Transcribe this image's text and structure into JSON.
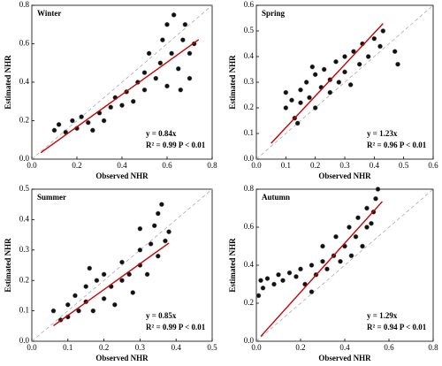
{
  "chart_data": [
    {
      "type": "scatter",
      "title": "Winter",
      "x_label": "Observed NHR",
      "y_label": "Estimated NHR",
      "color": "#111111",
      "fit_color": "#cc0000",
      "x": [
        0.1,
        0.12,
        0.15,
        0.18,
        0.2,
        0.22,
        0.25,
        0.27,
        0.3,
        0.32,
        0.35,
        0.37,
        0.4,
        0.42,
        0.45,
        0.47,
        0.5,
        0.5,
        0.52,
        0.55,
        0.57,
        0.58,
        0.6,
        0.6,
        0.62,
        0.63,
        0.65,
        0.67,
        0.68,
        0.7,
        0.72,
        0.7,
        0.66
      ],
      "y": [
        0.15,
        0.18,
        0.14,
        0.2,
        0.16,
        0.22,
        0.19,
        0.15,
        0.24,
        0.2,
        0.27,
        0.32,
        0.28,
        0.35,
        0.3,
        0.4,
        0.36,
        0.45,
        0.55,
        0.42,
        0.5,
        0.62,
        0.38,
        0.7,
        0.55,
        0.75,
        0.47,
        0.62,
        0.7,
        0.55,
        0.6,
        0.42,
        0.36
      ],
      "xlim": [
        0,
        0.8
      ],
      "ylim": [
        0,
        0.8
      ],
      "xticks": [
        {
          "value": 0,
          "label": "0.0"
        },
        0.2,
        0.4,
        0.6,
        0.8
      ],
      "yticks": [
        {
          "value": 0,
          "label": "0.0"
        },
        0.2,
        0.4,
        0.6,
        0.8
      ],
      "fit": {
        "slope": 0.84,
        "x": [
          0.04,
          0.74
        ],
        "equation": "y = 0.84x",
        "stats": "R² = 0.99 P < 0.01"
      }
    },
    {
      "type": "scatter",
      "title": "Spring",
      "x_label": "Observed NHR",
      "y_label": "Estimated NHR",
      "color": "#111111",
      "fit_color": "#cc0000",
      "x": [
        0.1,
        0.1,
        0.12,
        0.13,
        0.15,
        0.15,
        0.17,
        0.18,
        0.2,
        0.2,
        0.22,
        0.23,
        0.25,
        0.25,
        0.27,
        0.28,
        0.3,
        0.3,
        0.32,
        0.33,
        0.35,
        0.36,
        0.38,
        0.4,
        0.42,
        0.43,
        0.47,
        0.48,
        0.14,
        0.19
      ],
      "y": [
        0.2,
        0.26,
        0.23,
        0.16,
        0.27,
        0.22,
        0.3,
        0.24,
        0.33,
        0.2,
        0.28,
        0.35,
        0.26,
        0.31,
        0.38,
        0.3,
        0.34,
        0.4,
        0.29,
        0.42,
        0.37,
        0.45,
        0.4,
        0.47,
        0.44,
        0.5,
        0.42,
        0.37,
        0.14,
        0.36
      ],
      "xlim": [
        0,
        0.6
      ],
      "ylim": [
        0,
        0.6
      ],
      "xticks": [
        {
          "value": 0,
          "label": "0.0"
        },
        0.1,
        0.2,
        0.3,
        0.4,
        0.5,
        0.6
      ],
      "yticks": [
        {
          "value": 0,
          "label": "0.0"
        },
        0.1,
        0.2,
        0.3,
        0.4,
        0.5,
        0.6
      ],
      "fit": {
        "slope": 1.23,
        "x": [
          0.05,
          0.43
        ],
        "equation": "y = 1.23x",
        "stats": "R² = 0.96 P < 0.01"
      }
    },
    {
      "type": "scatter",
      "title": "Summer",
      "x_label": "Observed NHR",
      "y_label": "Estimated NHR",
      "color": "#111111",
      "fit_color": "#cc0000",
      "x": [
        0.06,
        0.08,
        0.1,
        0.1,
        0.12,
        0.13,
        0.15,
        0.15,
        0.17,
        0.18,
        0.2,
        0.2,
        0.22,
        0.23,
        0.25,
        0.25,
        0.27,
        0.28,
        0.3,
        0.3,
        0.32,
        0.33,
        0.34,
        0.35,
        0.35,
        0.36,
        0.37,
        0.38,
        0.3,
        0.16
      ],
      "y": [
        0.1,
        0.07,
        0.12,
        0.08,
        0.15,
        0.1,
        0.13,
        0.18,
        0.1,
        0.2,
        0.14,
        0.22,
        0.18,
        0.12,
        0.2,
        0.26,
        0.22,
        0.16,
        0.25,
        0.3,
        0.22,
        0.32,
        0.38,
        0.28,
        0.42,
        0.45,
        0.33,
        0.36,
        0.37,
        0.24
      ],
      "xlim": [
        0,
        0.5
      ],
      "ylim": [
        0,
        0.5
      ],
      "xticks": [
        {
          "value": 0,
          "label": "0.0"
        },
        0.1,
        0.2,
        0.3,
        0.4,
        0.5
      ],
      "yticks": [
        {
          "value": 0,
          "label": "0.0"
        },
        0.1,
        0.2,
        0.3,
        0.4,
        0.5
      ],
      "fit": {
        "slope": 0.85,
        "x": [
          0.06,
          0.38
        ],
        "equation": "y = 0.85x",
        "stats": "R² = 0.99 P < 0.01"
      }
    },
    {
      "type": "scatter",
      "title": "Autumn",
      "x_label": "Observed NHR",
      "y_label": "Estimated NHR",
      "color": "#111111",
      "fit_color": "#cc0000",
      "x": [
        0.02,
        0.03,
        0.05,
        0.08,
        0.1,
        0.12,
        0.15,
        0.18,
        0.2,
        0.22,
        0.25,
        0.27,
        0.3,
        0.3,
        0.32,
        0.35,
        0.36,
        0.38,
        0.4,
        0.42,
        0.43,
        0.45,
        0.46,
        0.48,
        0.5,
        0.5,
        0.52,
        0.54,
        0.55,
        0.53,
        0.25,
        0.01
      ],
      "y": [
        0.32,
        0.28,
        0.33,
        0.3,
        0.35,
        0.32,
        0.36,
        0.34,
        0.38,
        0.3,
        0.4,
        0.35,
        0.42,
        0.5,
        0.38,
        0.45,
        0.55,
        0.42,
        0.5,
        0.6,
        0.45,
        0.55,
        0.65,
        0.5,
        0.6,
        0.7,
        0.62,
        0.75,
        0.8,
        0.68,
        0.26,
        0.24
      ],
      "xlim": [
        0,
        0.8
      ],
      "ylim": [
        0,
        0.8
      ],
      "xticks": [
        {
          "value": 0,
          "label": "0.0"
        },
        0.2,
        0.4,
        0.6,
        0.8
      ],
      "yticks": [
        {
          "value": 0,
          "label": "0.0"
        },
        0.2,
        0.4,
        0.6,
        0.8
      ],
      "fit": {
        "slope": 1.29,
        "x": [
          0.02,
          0.57
        ],
        "equation": "y = 1.29x",
        "stats": "R² = 0.94 P < 0.01"
      }
    }
  ]
}
